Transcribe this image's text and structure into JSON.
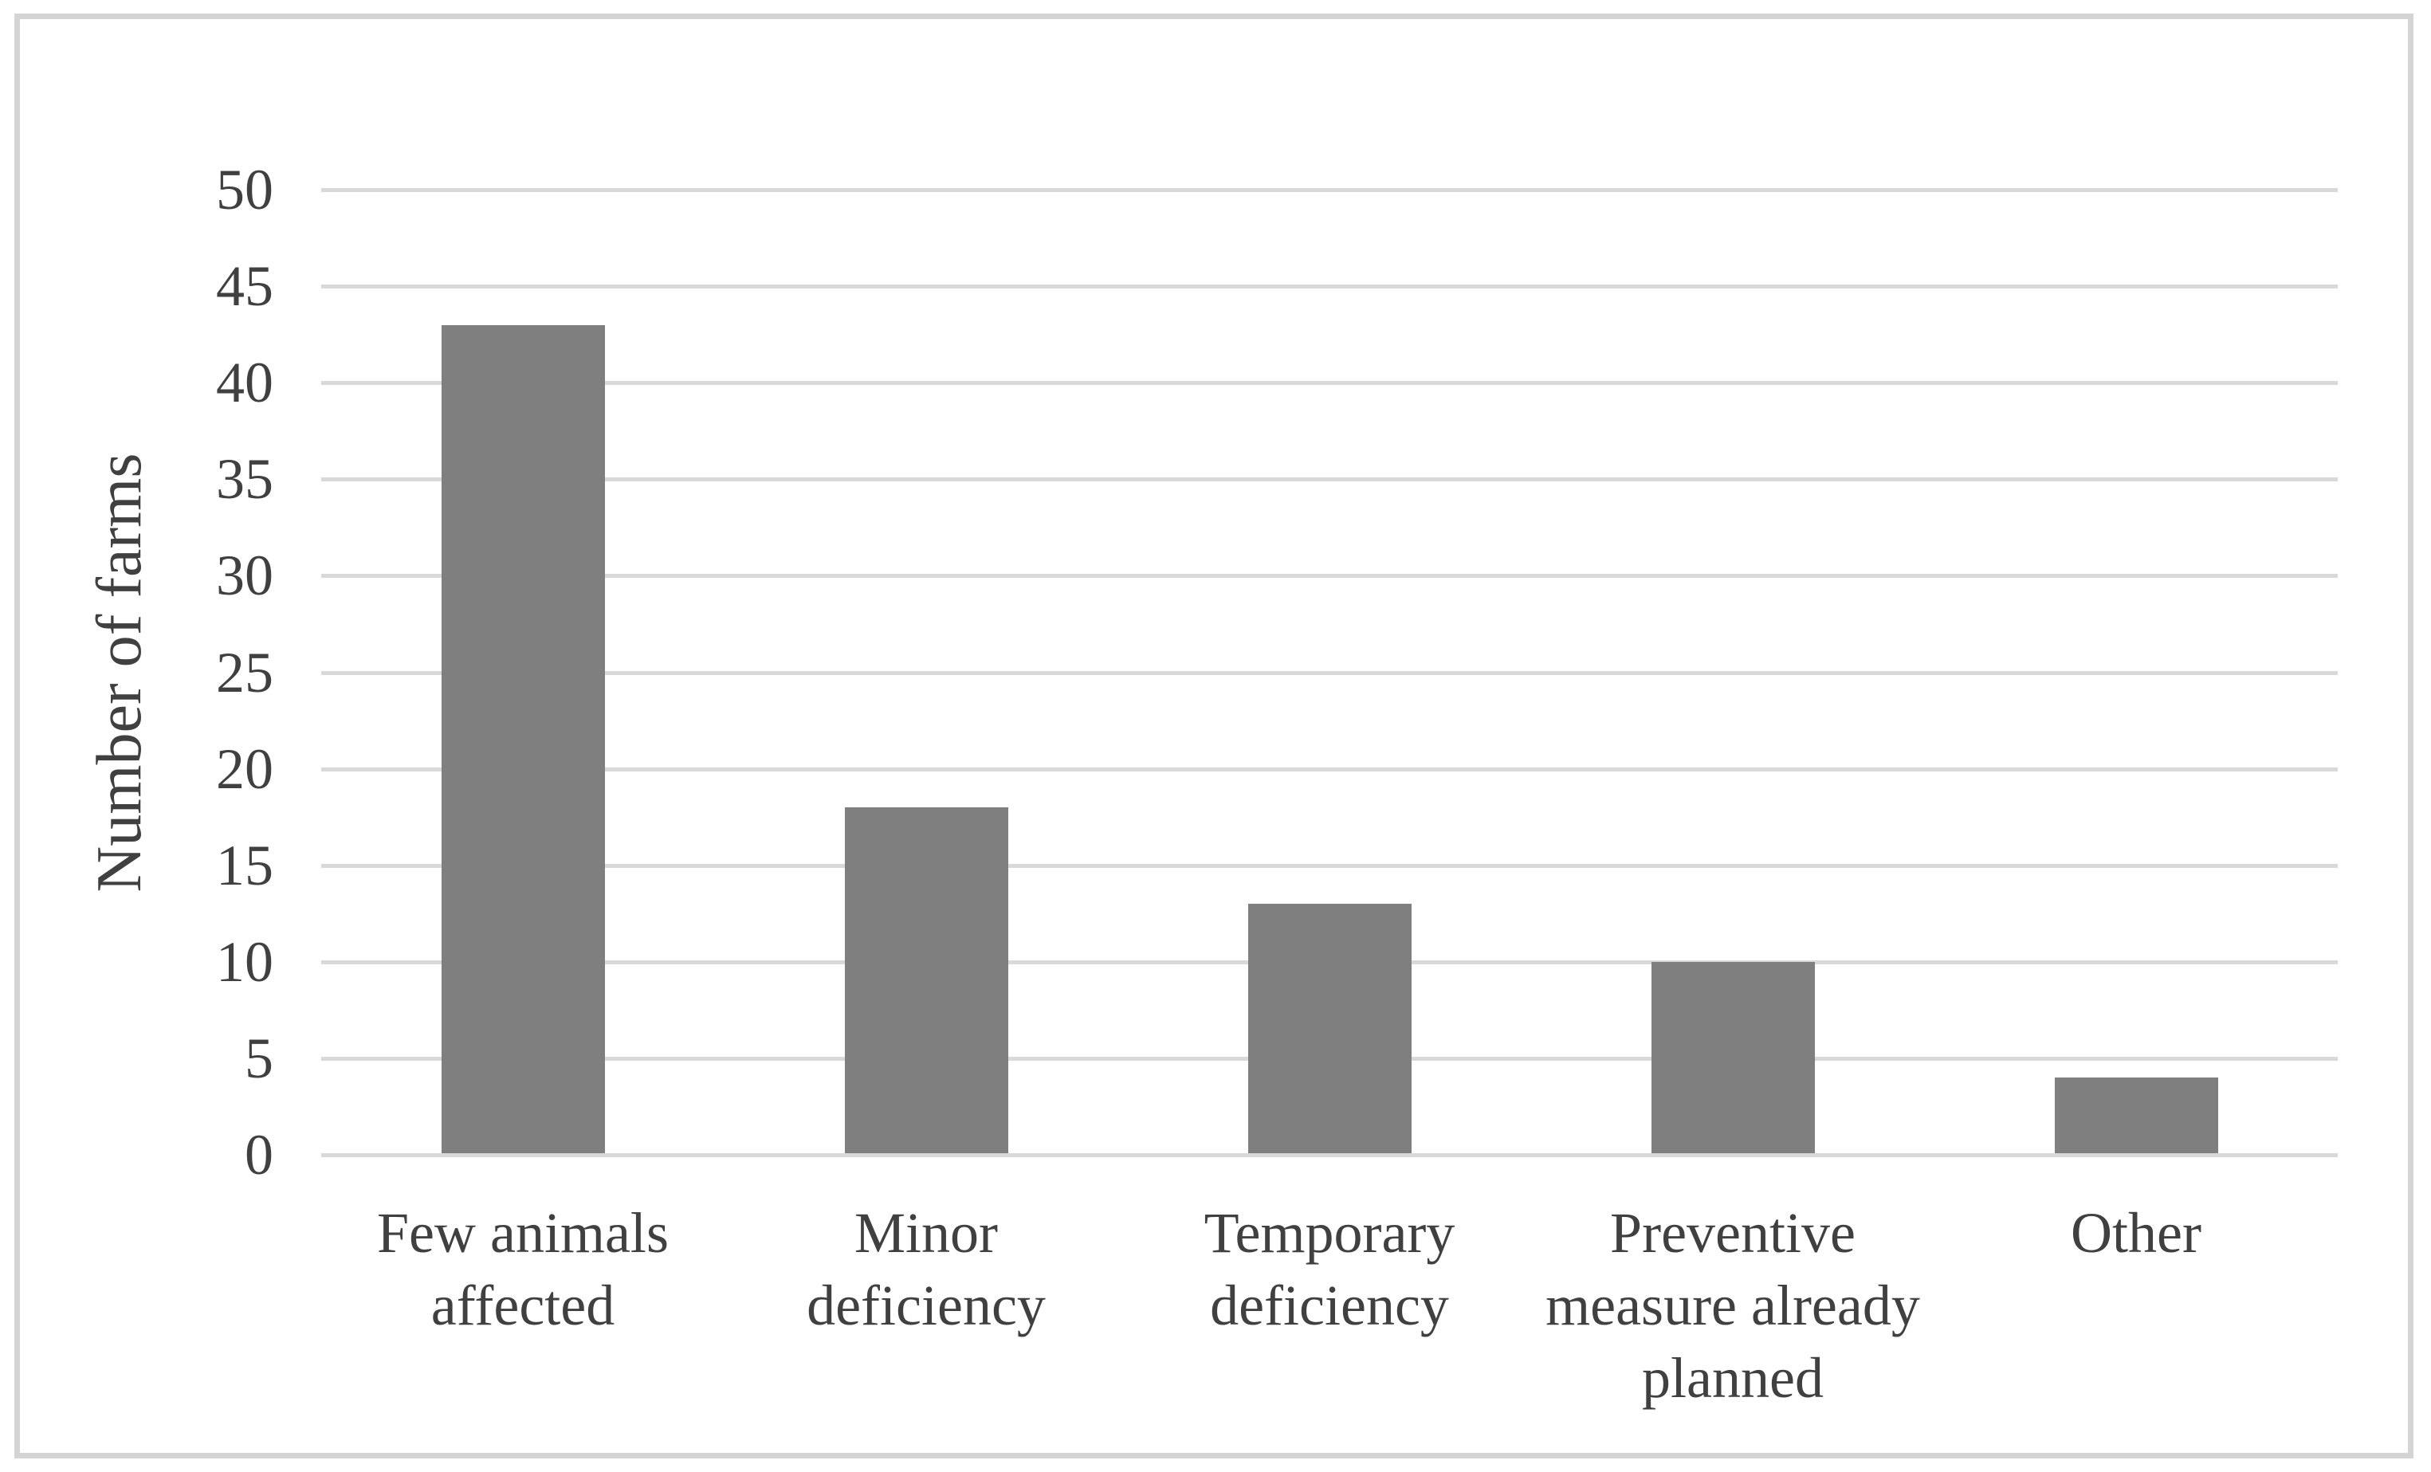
{
  "figure": {
    "background": "#ffffff",
    "border_color": "#d4d4d4"
  },
  "chart_data": {
    "type": "bar",
    "title": "",
    "categories": [
      "Few animals affected",
      "Minor deficiency",
      "Temporary deficiency",
      "Preventive measure already planned",
      "Other"
    ],
    "category_lines": [
      [
        "Few animals",
        "affected"
      ],
      [
        "Minor",
        "deficiency"
      ],
      [
        "Temporary",
        "deficiency"
      ],
      [
        "Preventive",
        "measure already",
        "planned"
      ],
      [
        "Other"
      ]
    ],
    "values": [
      43,
      18,
      13,
      10,
      4
    ],
    "xlabel": "",
    "ylabel": "Number of farms",
    "ylim": [
      0,
      50
    ],
    "yticks": [
      0,
      5,
      10,
      15,
      20,
      25,
      30,
      35,
      40,
      45,
      50
    ],
    "grid": "horizontal",
    "legend": "none",
    "bar_color": "#7f7f7f",
    "gridline_color": "#d9d9d9",
    "text_color": "#404040"
  }
}
